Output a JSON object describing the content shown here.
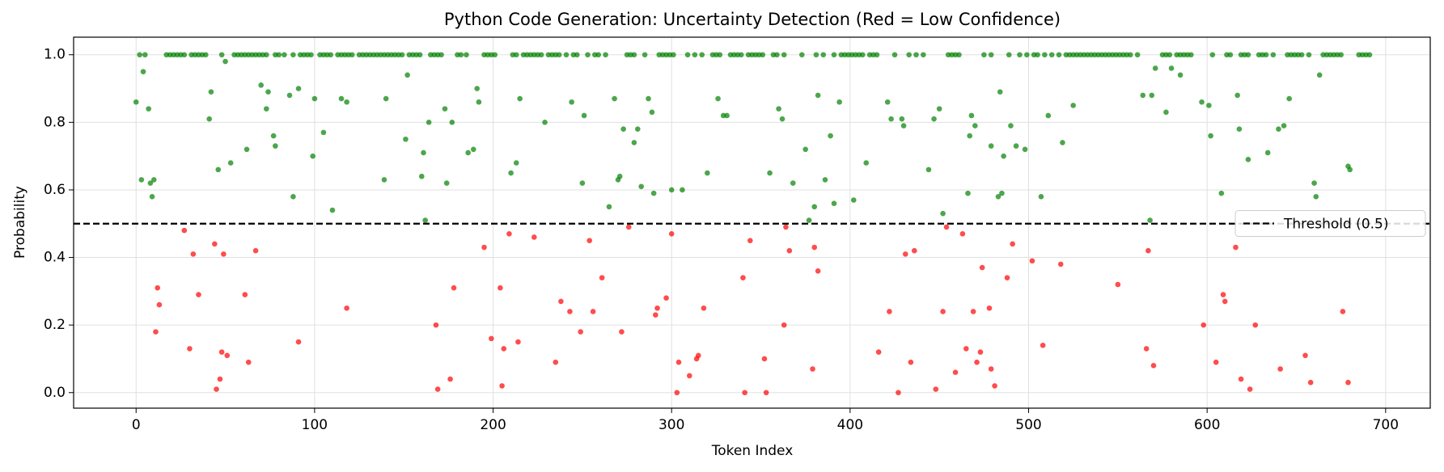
{
  "chart_data": {
    "type": "scatter",
    "title": "Python Code Generation: Uncertainty Detection (Red = Low Confidence)",
    "x_label": "Token Index",
    "y_label": "Probability",
    "xlim": [
      -35,
      725
    ],
    "ylim": [
      -0.046,
      1.052
    ],
    "xticks": [
      0,
      100,
      200,
      300,
      400,
      500,
      600,
      700
    ],
    "yticks": [
      {
        "value": 0,
        "label": "0.0"
      },
      0.2,
      0.4,
      0.6,
      0.8,
      {
        "value": 1,
        "label": "1.0"
      }
    ],
    "grid": true,
    "threshold": 0.5,
    "threshold_label": "Threshold (0.5)",
    "threshold_color": "#000000",
    "legend_position": "center right",
    "series": [
      {
        "color": "#ff0000",
        "x": [
          12,
          13,
          11,
          27,
          30,
          32,
          35,
          44,
          45,
          47,
          48,
          49,
          51,
          61,
          63,
          67,
          91,
          118,
          168,
          169,
          176,
          178,
          195,
          199,
          204,
          205,
          206,
          209,
          214,
          223,
          235,
          238,
          243,
          249,
          254,
          256,
          261,
          272,
          276,
          291,
          292,
          297,
          300,
          303,
          304,
          310,
          314,
          315,
          318,
          340,
          341,
          344,
          352,
          353,
          363,
          364,
          366,
          379,
          380,
          382,
          416,
          422,
          427,
          431,
          434,
          436,
          448,
          452,
          454,
          459,
          463,
          465,
          469,
          471,
          473,
          474,
          478,
          479,
          481,
          488,
          491,
          502,
          508,
          518,
          550,
          566,
          567,
          570,
          598,
          605,
          609,
          610,
          616,
          619,
          624,
          627,
          641,
          655,
          658,
          676,
          679
        ],
        "values": [
          0.31,
          0.26,
          0.18,
          0.48,
          0.13,
          0.41,
          0.29,
          0.44,
          0.01,
          0.04,
          0.12,
          0.41,
          0.11,
          0.29,
          0.09,
          0.42,
          0.15,
          0.25,
          0.2,
          0.01,
          0.04,
          0.31,
          0.43,
          0.16,
          0.31,
          0.02,
          0.13,
          0.47,
          0.15,
          0.46,
          0.09,
          0.27,
          0.24,
          0.18,
          0.45,
          0.24,
          0.34,
          0.18,
          0.49,
          0.23,
          0.25,
          0.28,
          0.47,
          0,
          0.09,
          0.05,
          0.1,
          0.11,
          0.25,
          0.34,
          0,
          0.45,
          0.1,
          0,
          0.2,
          0.49,
          0.42,
          0.07,
          0.43,
          0.36,
          0.12,
          0.24,
          0,
          0.41,
          0.09,
          0.42,
          0.01,
          0.24,
          0.49,
          0.06,
          0.47,
          0.13,
          0.24,
          0.09,
          0.12,
          0.37,
          0.25,
          0.07,
          0.02,
          0.34,
          0.44,
          0.39,
          0.14,
          0.38,
          0.32,
          0.13,
          0.42,
          0.08,
          0.2,
          0.09,
          0.29,
          0.27,
          0.43,
          0.04,
          0.01,
          0.2,
          0.07,
          0.11,
          0.03,
          0.24,
          0.03
        ]
      },
      {
        "color": "#008000",
        "x": [
          0,
          3,
          4,
          7,
          8,
          9,
          10,
          41,
          42,
          46,
          50,
          53,
          62,
          70,
          73,
          74,
          77,
          78,
          86,
          88,
          91,
          99,
          100,
          105,
          110,
          115,
          118,
          139,
          140,
          151,
          152,
          160,
          161,
          162,
          164,
          173,
          174,
          177,
          186,
          189,
          191,
          192,
          210,
          213,
          215,
          229,
          244,
          250,
          251,
          265,
          268,
          270,
          271,
          273,
          279,
          281,
          283,
          287,
          289,
          290,
          300,
          306,
          320,
          326,
          329,
          331,
          355,
          360,
          362,
          368,
          375,
          377,
          380,
          382,
          386,
          389,
          391,
          394,
          402,
          409,
          421,
          423,
          429,
          430,
          444,
          447,
          450,
          452,
          466,
          467,
          468,
          470,
          479,
          483,
          484,
          485,
          486,
          490,
          493,
          498,
          507,
          511,
          519,
          525,
          564,
          568,
          569,
          571,
          577,
          580,
          585,
          597,
          601,
          602,
          608,
          617,
          618,
          623,
          634,
          640,
          643,
          646,
          660,
          661,
          663,
          679,
          680
        ],
        "values": [
          0.86,
          0.63,
          0.95,
          0.84,
          0.62,
          0.58,
          0.63,
          0.81,
          0.89,
          0.66,
          0.98,
          0.68,
          0.72,
          0.91,
          0.84,
          0.89,
          0.76,
          0.73,
          0.88,
          0.58,
          0.9,
          0.7,
          0.87,
          0.77,
          0.54,
          0.87,
          0.86,
          0.63,
          0.87,
          0.75,
          0.94,
          0.64,
          0.71,
          0.51,
          0.8,
          0.84,
          0.62,
          0.8,
          0.71,
          0.72,
          0.9,
          0.86,
          0.65,
          0.68,
          0.87,
          0.8,
          0.86,
          0.62,
          0.82,
          0.55,
          0.87,
          0.63,
          0.64,
          0.78,
          0.74,
          0.78,
          0.61,
          0.87,
          0.83,
          0.59,
          0.6,
          0.6,
          0.65,
          0.87,
          0.82,
          0.82,
          0.65,
          0.84,
          0.81,
          0.62,
          0.72,
          0.51,
          0.55,
          0.88,
          0.63,
          0.76,
          0.56,
          0.86,
          0.57,
          0.68,
          0.86,
          0.81,
          0.81,
          0.79,
          0.66,
          0.81,
          0.84,
          0.53,
          0.59,
          0.76,
          0.82,
          0.79,
          0.73,
          0.58,
          0.89,
          0.59,
          0.7,
          0.79,
          0.73,
          0.72,
          0.58,
          0.82,
          0.74,
          0.85,
          0.88,
          0.51,
          0.88,
          0.96,
          0.83,
          0.96,
          0.94,
          0.86,
          0.85,
          0.76,
          0.59,
          0.88,
          0.78,
          0.69,
          0.71,
          0.78,
          0.79,
          0.87,
          0.62,
          0.58,
          0.94,
          0.67,
          0.66
        ]
      },
      {
        "color": "#008000",
        "x": [
          2,
          5,
          17,
          19,
          21,
          23,
          25,
          27,
          31,
          33,
          35,
          37,
          39,
          48,
          55,
          57,
          59,
          61,
          63,
          65,
          67,
          69,
          71,
          73,
          78,
          80,
          83,
          88,
          92,
          94,
          96,
          98,
          103,
          105,
          107,
          109,
          113,
          115,
          117,
          119,
          121,
          125,
          127,
          129,
          131,
          133,
          135,
          137,
          139,
          141,
          143,
          145,
          147,
          149,
          153,
          155,
          157,
          159,
          165,
          167,
          169,
          171,
          180,
          182,
          185,
          195,
          197,
          199,
          201,
          211,
          213,
          217,
          219,
          221,
          223,
          225,
          227,
          231,
          233,
          235,
          237,
          241,
          245,
          247,
          253,
          257,
          259,
          263,
          275,
          277,
          279,
          285,
          293,
          295,
          297,
          299,
          301,
          309,
          313,
          317,
          323,
          325,
          327,
          333,
          335,
          337,
          339,
          343,
          345,
          347,
          349,
          351,
          357,
          359,
          363,
          373,
          381,
          385,
          391,
          395,
          397,
          399,
          401,
          403,
          405,
          407,
          411,
          413,
          415,
          425,
          433,
          437,
          441,
          455,
          457,
          459,
          461,
          475,
          479,
          489,
          495,
          499,
          503,
          505,
          509,
          513,
          517,
          521,
          523,
          525,
          527,
          529,
          531,
          533,
          535,
          537,
          539,
          541,
          543,
          545,
          547,
          549,
          551,
          553,
          555,
          557,
          561,
          575,
          577,
          579,
          583,
          585,
          587,
          589,
          591,
          603,
          611,
          613,
          619,
          621,
          623,
          629,
          631,
          633,
          637,
          645,
          647,
          649,
          651,
          653,
          657,
          665,
          667,
          669,
          671,
          673,
          675,
          685,
          687,
          689,
          691
        ],
        "values": [
          1,
          1,
          1,
          1,
          1,
          1,
          1,
          1,
          1,
          1,
          1,
          1,
          1,
          1,
          1,
          1,
          1,
          1,
          1,
          1,
          1,
          1,
          1,
          1,
          1,
          1,
          1,
          1,
          1,
          1,
          1,
          1,
          1,
          1,
          1,
          1,
          1,
          1,
          1,
          1,
          1,
          1,
          1,
          1,
          1,
          1,
          1,
          1,
          1,
          1,
          1,
          1,
          1,
          1,
          1,
          1,
          1,
          1,
          1,
          1,
          1,
          1,
          1,
          1,
          1,
          1,
          1,
          1,
          1,
          1,
          1,
          1,
          1,
          1,
          1,
          1,
          1,
          1,
          1,
          1,
          1,
          1,
          1,
          1,
          1,
          1,
          1,
          1,
          1,
          1,
          1,
          1,
          1,
          1,
          1,
          1,
          1,
          1,
          1,
          1,
          1,
          1,
          1,
          1,
          1,
          1,
          1,
          1,
          1,
          1,
          1,
          1,
          1,
          1,
          1,
          1,
          1,
          1,
          1,
          1,
          1,
          1,
          1,
          1,
          1,
          1,
          1,
          1,
          1,
          1,
          1,
          1,
          1,
          1,
          1,
          1,
          1,
          1,
          1,
          1,
          1,
          1,
          1,
          1,
          1,
          1,
          1,
          1,
          1,
          1,
          1,
          1,
          1,
          1,
          1,
          1,
          1,
          1,
          1,
          1,
          1,
          1,
          1,
          1,
          1,
          1,
          1,
          1,
          1,
          1,
          1,
          1,
          1,
          1,
          1,
          1,
          1,
          1,
          1,
          1,
          1,
          1,
          1,
          1,
          1,
          1,
          1,
          1,
          1,
          1,
          1,
          1,
          1,
          1,
          1,
          1,
          1,
          1,
          1,
          1,
          1
        ]
      }
    ]
  }
}
